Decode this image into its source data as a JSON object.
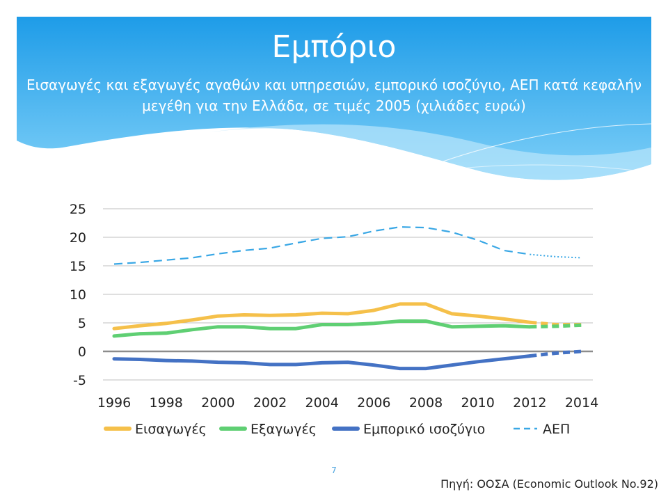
{
  "slide": {
    "title": "Εμπόριο",
    "subtitle": "Εισαγωγές και εξαγωγές αγαθών και υπηρεσιών, εμπορικό ισοζύγιο, ΑΕΠ κατά κεφαλήν μεγέθη για την Ελλάδα, σε τιμές 2005 (χιλιάδες ευρώ)",
    "page_number": "7",
    "source": "Πηγή: ΟΟΣΑ (Economic Outlook No.92)"
  },
  "colors": {
    "header_top": "#1e9ce8",
    "header_bottom": "#7fd0f8",
    "imports": "#f5c04a",
    "exports": "#5fcf73",
    "balance": "#4472c4",
    "gdp": "#39a7e5",
    "gridline": "#bfbfbf"
  },
  "chart_data": {
    "type": "line",
    "title": "",
    "xlabel": "",
    "ylabel": "",
    "x": [
      1996,
      1997,
      1998,
      1999,
      2000,
      2001,
      2002,
      2003,
      2004,
      2005,
      2006,
      2007,
      2008,
      2009,
      2010,
      2011,
      2012,
      2013,
      2014
    ],
    "x_ticks": [
      "1996",
      "1998",
      "2000",
      "2002",
      "2004",
      "2006",
      "2008",
      "2010",
      "2012",
      "2014"
    ],
    "y_ticks": [
      "25",
      "20",
      "15",
      "10",
      "5",
      "0",
      "-5"
    ],
    "ylim": [
      -5,
      25
    ],
    "grid": true,
    "legend_position": "bottom",
    "actual_until": 2012,
    "series": [
      {
        "name": "Εισαγωγές",
        "key": "imports",
        "style": "solid",
        "values": [
          4.0,
          4.5,
          4.9,
          5.5,
          6.2,
          6.4,
          6.3,
          6.4,
          6.7,
          6.6,
          7.2,
          8.3,
          8.3,
          6.6,
          6.2,
          5.7,
          5.1,
          4.7,
          4.7
        ]
      },
      {
        "name": "Εξαγωγές",
        "key": "exports",
        "style": "solid",
        "values": [
          2.7,
          3.1,
          3.2,
          3.8,
          4.3,
          4.3,
          4.0,
          4.0,
          4.7,
          4.7,
          4.9,
          5.3,
          5.3,
          4.3,
          4.4,
          4.5,
          4.3,
          4.4,
          4.6
        ]
      },
      {
        "name": "Εμπορικό ισοζύγιο",
        "key": "balance",
        "style": "solid",
        "values": [
          -1.3,
          -1.4,
          -1.6,
          -1.7,
          -1.9,
          -2.0,
          -2.3,
          -2.3,
          -2.0,
          -1.9,
          -2.4,
          -3.0,
          -3.0,
          -2.4,
          -1.8,
          -1.3,
          -0.8,
          -0.3,
          0.0
        ]
      },
      {
        "name": "ΑΕΠ",
        "key": "gdp",
        "style": "dashed",
        "values": [
          15.3,
          15.6,
          16.0,
          16.4,
          17.1,
          17.7,
          18.1,
          19.0,
          19.8,
          20.1,
          21.1,
          21.8,
          21.7,
          20.9,
          19.5,
          17.7,
          17.0,
          16.6,
          16.4
        ]
      }
    ]
  }
}
